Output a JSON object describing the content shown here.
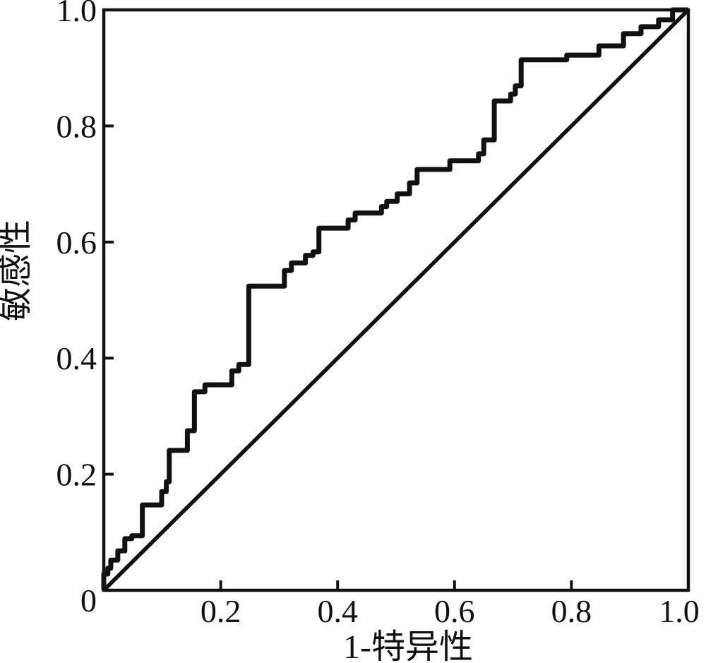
{
  "chart_data": {
    "type": "line",
    "subtype": "roc-step-curve",
    "title": "",
    "xlabel": "1-特异性",
    "ylabel": "敏感性",
    "xlim": [
      0,
      1
    ],
    "ylim": [
      0,
      1
    ],
    "grid": false,
    "legend": null,
    "origin_label": "0",
    "line_color": "#111111",
    "background_color": "#ffffff",
    "x_ticks": [
      {
        "value": 0.2,
        "label": "0.2"
      },
      {
        "value": 0.4,
        "label": "0.4"
      },
      {
        "value": 0.6,
        "label": "0.6"
      },
      {
        "value": 0.8,
        "label": "0.8"
      },
      {
        "value": 1.0,
        "label": "1.0"
      }
    ],
    "y_ticks": [
      {
        "value": 0.2,
        "label": "0.2"
      },
      {
        "value": 0.4,
        "label": "0.4"
      },
      {
        "value": 0.6,
        "label": "0.6"
      },
      {
        "value": 0.8,
        "label": "0.8"
      },
      {
        "value": 1.0,
        "label": "1.0"
      }
    ],
    "series": [
      {
        "name": "roc-curve",
        "points": [
          [
            0.0,
            0.0
          ],
          [
            0.0,
            0.028
          ],
          [
            0.007,
            0.028
          ],
          [
            0.007,
            0.038
          ],
          [
            0.012,
            0.038
          ],
          [
            0.012,
            0.052
          ],
          [
            0.024,
            0.052
          ],
          [
            0.024,
            0.068
          ],
          [
            0.036,
            0.068
          ],
          [
            0.036,
            0.089
          ],
          [
            0.048,
            0.089
          ],
          [
            0.048,
            0.094
          ],
          [
            0.066,
            0.094
          ],
          [
            0.066,
            0.147
          ],
          [
            0.099,
            0.147
          ],
          [
            0.099,
            0.17
          ],
          [
            0.107,
            0.17
          ],
          [
            0.107,
            0.187
          ],
          [
            0.112,
            0.187
          ],
          [
            0.112,
            0.241
          ],
          [
            0.143,
            0.241
          ],
          [
            0.143,
            0.275
          ],
          [
            0.155,
            0.275
          ],
          [
            0.155,
            0.342
          ],
          [
            0.173,
            0.342
          ],
          [
            0.173,
            0.354
          ],
          [
            0.219,
            0.354
          ],
          [
            0.219,
            0.378
          ],
          [
            0.231,
            0.378
          ],
          [
            0.231,
            0.389
          ],
          [
            0.248,
            0.389
          ],
          [
            0.248,
            0.524
          ],
          [
            0.309,
            0.524
          ],
          [
            0.309,
            0.551
          ],
          [
            0.321,
            0.551
          ],
          [
            0.321,
            0.564
          ],
          [
            0.345,
            0.564
          ],
          [
            0.345,
            0.577
          ],
          [
            0.358,
            0.577
          ],
          [
            0.358,
            0.583
          ],
          [
            0.368,
            0.583
          ],
          [
            0.368,
            0.624
          ],
          [
            0.418,
            0.624
          ],
          [
            0.418,
            0.638
          ],
          [
            0.43,
            0.638
          ],
          [
            0.43,
            0.65
          ],
          [
            0.475,
            0.65
          ],
          [
            0.475,
            0.661
          ],
          [
            0.484,
            0.661
          ],
          [
            0.484,
            0.67
          ],
          [
            0.502,
            0.67
          ],
          [
            0.502,
            0.683
          ],
          [
            0.523,
            0.683
          ],
          [
            0.523,
            0.702
          ],
          [
            0.536,
            0.702
          ],
          [
            0.536,
            0.725
          ],
          [
            0.592,
            0.725
          ],
          [
            0.592,
            0.74
          ],
          [
            0.641,
            0.74
          ],
          [
            0.641,
            0.752
          ],
          [
            0.65,
            0.752
          ],
          [
            0.65,
            0.776
          ],
          [
            0.668,
            0.776
          ],
          [
            0.668,
            0.843
          ],
          [
            0.696,
            0.843
          ],
          [
            0.696,
            0.855
          ],
          [
            0.704,
            0.855
          ],
          [
            0.704,
            0.869
          ],
          [
            0.714,
            0.869
          ],
          [
            0.714,
            0.914
          ],
          [
            0.792,
            0.914
          ],
          [
            0.792,
            0.922
          ],
          [
            0.847,
            0.922
          ],
          [
            0.847,
            0.938
          ],
          [
            0.889,
            0.938
          ],
          [
            0.889,
            0.959
          ],
          [
            0.919,
            0.959
          ],
          [
            0.919,
            0.971
          ],
          [
            0.949,
            0.971
          ],
          [
            0.949,
            0.983
          ],
          [
            0.973,
            0.983
          ],
          [
            0.973,
            1.0
          ],
          [
            1.0,
            1.0
          ]
        ]
      },
      {
        "name": "reference-diagonal",
        "points": [
          [
            0.0,
            0.0
          ],
          [
            1.0,
            1.0
          ]
        ]
      }
    ]
  }
}
